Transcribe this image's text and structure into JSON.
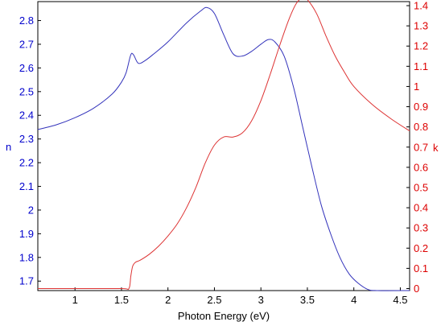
{
  "chart_data": {
    "type": "line",
    "title": "",
    "xlabel": "Photon Energy (eV)",
    "xlim": [
      0.6,
      4.6
    ],
    "x_ticks": [
      "1",
      "1.5",
      "2",
      "2.5",
      "3",
      "3.5",
      "4",
      "4.5"
    ],
    "y_left": {
      "label": "n",
      "color": "#0000cc",
      "lim": [
        1.66,
        2.88
      ],
      "ticks": [
        "1.7",
        "1.8",
        "1.9",
        "2",
        "2.1",
        "2.2",
        "2.3",
        "2.4",
        "2.5",
        "2.6",
        "2.7",
        "2.8"
      ]
    },
    "y_right": {
      "label": "k",
      "color": "#dd0000",
      "lim": [
        -0.01,
        1.42
      ],
      "ticks": [
        "0",
        "0.1",
        "0.2",
        "0.3",
        "0.4",
        "0.5",
        "0.6",
        "0.7",
        "0.8",
        "0.9",
        "1",
        "1.1",
        "1.2",
        "1.3",
        "1.4"
      ]
    },
    "series": [
      {
        "axis": "left",
        "color": "#3333bb",
        "x": [
          0.6,
          0.8,
          1.0,
          1.2,
          1.4,
          1.5,
          1.55,
          1.6,
          1.63,
          1.68,
          1.75,
          1.85,
          2.0,
          2.2,
          2.35,
          2.42,
          2.5,
          2.6,
          2.7,
          2.8,
          2.9,
          3.0,
          3.08,
          3.15,
          3.25,
          3.35,
          3.45,
          3.55,
          3.65,
          3.75,
          3.85,
          3.95,
          4.05,
          4.15,
          4.25,
          4.6
        ],
        "y": [
          2.34,
          2.36,
          2.39,
          2.43,
          2.49,
          2.54,
          2.58,
          2.655,
          2.655,
          2.62,
          2.63,
          2.66,
          2.71,
          2.79,
          2.84,
          2.855,
          2.83,
          2.74,
          2.66,
          2.65,
          2.67,
          2.7,
          2.72,
          2.71,
          2.65,
          2.52,
          2.35,
          2.18,
          2.02,
          1.9,
          1.8,
          1.73,
          1.69,
          1.665,
          1.66,
          1.66
        ]
      },
      {
        "axis": "right",
        "color": "#dd3333",
        "x": [
          0.6,
          1.0,
          1.5,
          1.58,
          1.6,
          1.62,
          1.65,
          1.7,
          1.8,
          1.9,
          2.0,
          2.1,
          2.2,
          2.3,
          2.4,
          2.5,
          2.6,
          2.7,
          2.8,
          2.9,
          3.0,
          3.1,
          3.2,
          3.3,
          3.38,
          3.45,
          3.5,
          3.6,
          3.7,
          3.8,
          3.9,
          4.0,
          4.2,
          4.4,
          4.6
        ],
        "y": [
          0.0,
          0.0,
          0.0,
          0.0,
          0.06,
          0.11,
          0.13,
          0.14,
          0.17,
          0.21,
          0.26,
          0.32,
          0.4,
          0.5,
          0.62,
          0.71,
          0.75,
          0.75,
          0.77,
          0.83,
          0.93,
          1.06,
          1.2,
          1.33,
          1.41,
          1.44,
          1.43,
          1.36,
          1.25,
          1.15,
          1.07,
          1.0,
          0.91,
          0.84,
          0.78
        ]
      }
    ]
  }
}
